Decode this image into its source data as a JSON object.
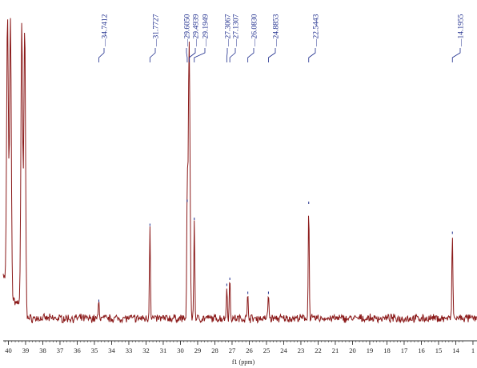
{
  "chart_data": {
    "type": "line",
    "title": "",
    "xlabel": "f1 (ppm)",
    "ylabel": "",
    "x_reversed": true,
    "xlim": [
      40.3,
      13.3
    ],
    "ylim": [
      0,
      100
    ],
    "x_ticks": [
      "40",
      "39",
      "38",
      "37",
      "36",
      "35",
      "34",
      "33",
      "32",
      "31",
      "30",
      "29",
      "28",
      "27",
      "26",
      "25",
      "24",
      "23",
      "22",
      "21",
      "20",
      "19",
      "18",
      "17",
      "16",
      "15",
      "14",
      "1"
    ],
    "grid": false,
    "legend": "none",
    "colors": {
      "spectrum": "#8b1a1a",
      "labels": "#1d2c8c",
      "axis": "#333333"
    },
    "peak_labels": [
      {
        "text": "34.7412",
        "shift": 34.7412
      },
      {
        "text": "31.7727",
        "shift": 31.7727
      },
      {
        "text": "29.6050",
        "shift": 29.605
      },
      {
        "text": "29.4939",
        "shift": 29.4939
      },
      {
        "text": "29.1949",
        "shift": 29.1949
      },
      {
        "text": "27.3067",
        "shift": 27.3067
      },
      {
        "text": "27.1307",
        "shift": 27.1307
      },
      {
        "text": "26.0830",
        "shift": 26.083
      },
      {
        "text": "24.8853",
        "shift": 24.8853
      },
      {
        "text": "22.5443",
        "shift": 22.5443
      },
      {
        "text": "14.1955",
        "shift": 14.1955
      }
    ],
    "peaks": [
      {
        "shift": 40.05,
        "height": 140
      },
      {
        "shift": 39.88,
        "height": 140
      },
      {
        "shift": 39.22,
        "height": 140
      },
      {
        "shift": 39.05,
        "height": 140
      },
      {
        "shift": 34.7412,
        "height": 9
      },
      {
        "shift": 31.7727,
        "height": 47
      },
      {
        "shift": 29.605,
        "height": 59
      },
      {
        "shift": 29.4939,
        "height": 140
      },
      {
        "shift": 29.1949,
        "height": 50
      },
      {
        "shift": 27.3067,
        "height": 17
      },
      {
        "shift": 27.1307,
        "height": 20
      },
      {
        "shift": 26.083,
        "height": 13
      },
      {
        "shift": 24.8853,
        "height": 13
      },
      {
        "shift": 22.5443,
        "height": 58
      },
      {
        "shift": 14.1955,
        "height": 43
      }
    ]
  }
}
